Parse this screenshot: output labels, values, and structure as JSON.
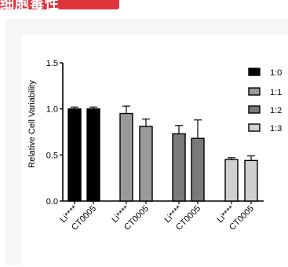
{
  "banner": {
    "text": "细胞毒性",
    "color": "#e0343c"
  },
  "chart_data": {
    "type": "bar",
    "ylabel": "Relative Cell Variability",
    "ylim": [
      0,
      1.5
    ],
    "yticks": [
      "0.0",
      "0.5",
      "1.0",
      "1.5"
    ],
    "categories": [
      "Li****",
      "CT0005",
      "Li****",
      "CT0005",
      "Li****",
      "CT0005",
      "Li****",
      "CT0005"
    ],
    "values": [
      1.0,
      1.0,
      0.95,
      0.81,
      0.73,
      0.68,
      0.45,
      0.44
    ],
    "errors": [
      0.02,
      0.02,
      0.08,
      0.08,
      0.09,
      0.2,
      0.02,
      0.05
    ],
    "groups": [
      "1:0",
      "1:1",
      "1:2",
      "1:3"
    ],
    "group_colors": [
      "#000000",
      "#9a9a9a",
      "#7a7a7a",
      "#cfcfcf"
    ],
    "legend": {
      "placement": "right",
      "entries": [
        "1:0",
        "1:1",
        "1:2",
        "1:3"
      ]
    },
    "grid": false
  }
}
